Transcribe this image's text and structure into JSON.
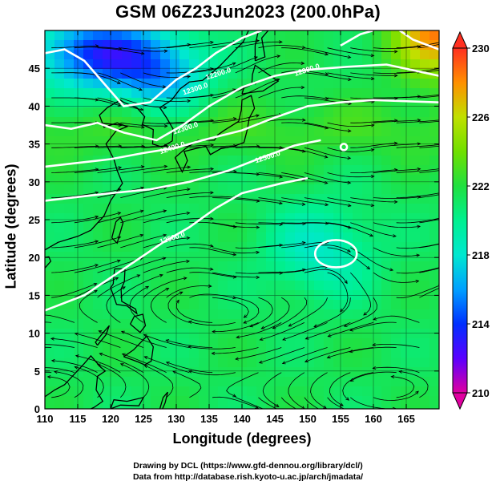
{
  "title": "GSM 06Z23Jun2023 (200.0hPa)",
  "xlabel": "Longitude (degrees)",
  "ylabel": "Latitude  (degrees)",
  "credits": [
    "Drawing by DCL (https://www.gfd-dennou.org/library/dcl/)",
    "Data from http://database.rish.kyoto-u.ac.jp/arch/jmadata/"
  ],
  "map": {
    "lon_range": [
      110,
      170
    ],
    "lat_range": [
      0,
      50
    ],
    "x_ticks": [
      "110",
      "115",
      "120",
      "125",
      "130",
      "135",
      "140",
      "145",
      "150",
      "155",
      "160",
      "165"
    ],
    "y_ticks": [
      "0",
      "5",
      "10",
      "15",
      "20",
      "25",
      "30",
      "35",
      "40",
      "45"
    ],
    "colorbar": {
      "min": 210,
      "max": 230,
      "tick_labels": [
        "230",
        "226",
        "222",
        "218",
        "214",
        "210"
      ],
      "colors": [
        "#e000a0",
        "#5a00ff",
        "#0030ff",
        "#00a0ff",
        "#00e8d0",
        "#00f090",
        "#20e040",
        "#70e000",
        "#c0e000",
        "#ff9000",
        "#ff3020"
      ]
    },
    "contour_labels": [
      {
        "text": "12400.0",
        "lon": 129.5,
        "lat": 34.2
      },
      {
        "text": "12300.0",
        "lon": 131.5,
        "lat": 36.8
      },
      {
        "text": "12300.0",
        "lon": 133.0,
        "lat": 42.0
      },
      {
        "text": "12200.0",
        "lon": 136.5,
        "lat": 44.0
      },
      {
        "text": "12300.0",
        "lon": 150.0,
        "lat": 44.5
      },
      {
        "text": "12500.0",
        "lon": 144.0,
        "lat": 33.0
      },
      {
        "text": "12500.0",
        "lon": 129.5,
        "lat": 22.3
      }
    ]
  }
}
